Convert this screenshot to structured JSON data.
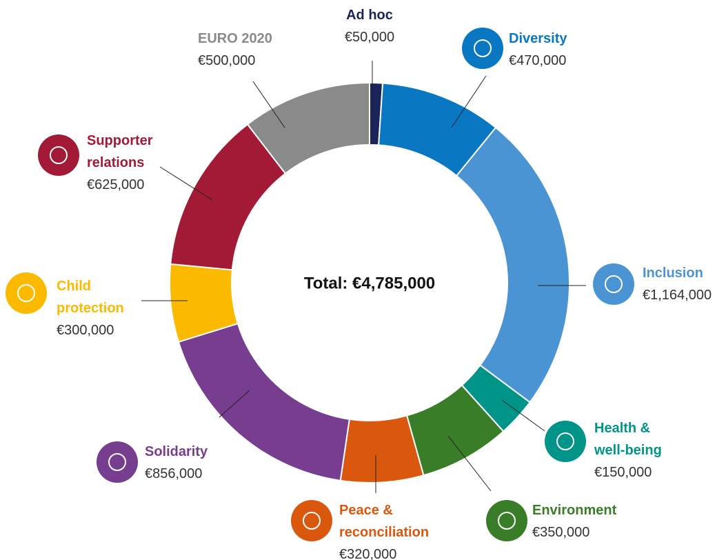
{
  "chart_data": {
    "type": "donut",
    "categories": [
      "Ad hoc",
      "Diversity",
      "Inclusion",
      "Health & well-being",
      "Environment",
      "Peace & reconciliation",
      "Solidarity",
      "Child protection",
      "Supporter relations",
      "EURO 2020"
    ],
    "values": [
      50000,
      470000,
      1164000,
      150000,
      350000,
      320000,
      856000,
      300000,
      625000,
      500000
    ],
    "value_labels": [
      "€50,000",
      "€470,000",
      "€1,164,000",
      "€150,000",
      "€350,000",
      "€320,000",
      "€856,000",
      "€300,000",
      "€625,000",
      "€500,000"
    ],
    "colors": [
      "#1b2459",
      "#0a77c2",
      "#4a94d4",
      "#009488",
      "#3a7d28",
      "#d9580e",
      "#773d8e",
      "#fbb900",
      "#a31a36",
      "#8a8a8a"
    ],
    "center_label": "Total: €4,785,000"
  }
}
